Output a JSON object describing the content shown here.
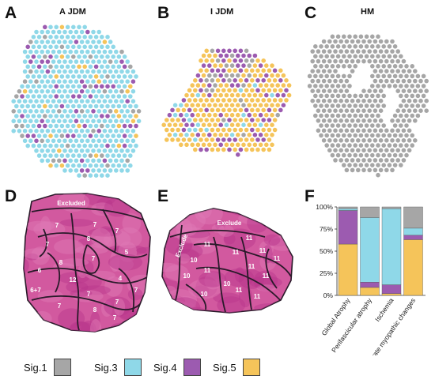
{
  "panels": {
    "A": {
      "letter": "A",
      "title": "A JDM"
    },
    "B": {
      "letter": "B",
      "title": "I JDM"
    },
    "C": {
      "letter": "C",
      "title": "HM"
    },
    "D": {
      "letter": "D",
      "region_labels": [
        "Excluded",
        "7",
        "7",
        "7",
        "8",
        "8",
        "6",
        "6+7",
        "12",
        "7",
        "7",
        "8",
        "4",
        "5",
        "7",
        "7",
        "7",
        "7",
        "7"
      ]
    },
    "E": {
      "letter": "E",
      "region_labels": [
        "Exclude",
        "Exclude",
        "11",
        "11",
        "11",
        "11",
        "11",
        "10",
        "10",
        "10",
        "11",
        "11",
        "11",
        "10",
        "11",
        "11"
      ]
    },
    "F": {
      "letter": "F"
    }
  },
  "colors": {
    "sig1": "#a6a6a6",
    "sig3": "#8fd8e8",
    "sig4": "#9c5bb0",
    "sig5": "#f5c45a",
    "tissue": "#c2449a",
    "outline": "#2a1a2a"
  },
  "legend": [
    {
      "label": "Sig.1",
      "color": "#a6a6a6"
    },
    {
      "label": "Sig.3",
      "color": "#8fd8e8"
    },
    {
      "label": "Sig.4",
      "color": "#9c5bb0"
    },
    {
      "label": "Sig.5",
      "color": "#f5c45a"
    }
  ],
  "chart_data": {
    "type": "bar",
    "stacked": true,
    "categories": [
      "Global Atrophy",
      "Perifascicular atrophy",
      "Ischemia",
      "Moderate myopathic changes"
    ],
    "yticks": [
      "0%",
      "25%",
      "50%",
      "75%",
      "100%"
    ],
    "ylim": [
      0,
      100
    ],
    "series": [
      {
        "name": "Sig.5",
        "values": [
          58,
          9,
          2,
          63
        ]
      },
      {
        "name": "Sig.4",
        "values": [
          38,
          6,
          10,
          5
        ]
      },
      {
        "name": "Sig.3",
        "values": [
          2,
          73,
          86,
          8
        ]
      },
      {
        "name": "Sig.1",
        "values": [
          2,
          12,
          2,
          24
        ]
      }
    ]
  }
}
